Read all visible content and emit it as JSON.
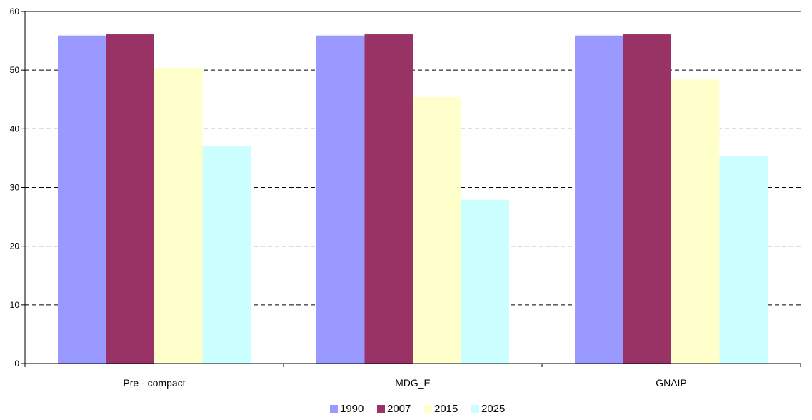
{
  "chart_data": {
    "type": "bar",
    "categories": [
      "Pre - compact",
      "MDG_E",
      "GNAIP"
    ],
    "series": [
      {
        "name": "1990",
        "color": "#9999FF",
        "values": [
          55.9,
          55.9,
          55.9
        ]
      },
      {
        "name": "2007",
        "color": "#993366",
        "values": [
          56.1,
          56.1,
          56.1
        ]
      },
      {
        "name": "2015",
        "color": "#FFFFCC",
        "values": [
          50.4,
          45.4,
          48.4
        ]
      },
      {
        "name": "2025",
        "color": "#CCFFFF",
        "values": [
          37.0,
          27.9,
          35.3
        ]
      }
    ],
    "yticks": [
      "0",
      "10",
      "20",
      "30",
      "40",
      "50",
      "60"
    ],
    "ylim": [
      0,
      60
    ],
    "grid": "horizontal dashed",
    "legend_position": "bottom"
  }
}
